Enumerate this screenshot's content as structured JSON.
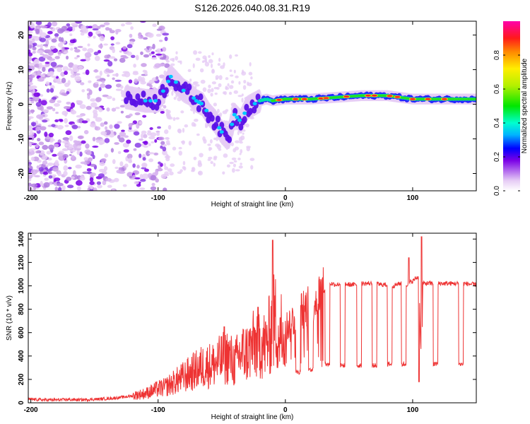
{
  "title": "S126.2026.040.08.31.R19",
  "chart_data": [
    {
      "type": "heatmap",
      "xlabel": "Height of straight line (km)",
      "ylabel": "Frequency (Hz)",
      "xlim": [
        -202,
        150
      ],
      "ylim": [
        -25,
        24
      ],
      "x_ticks": [
        -200,
        -100,
        0,
        100
      ],
      "x_tick_labels": [
        "-200",
        "-100",
        "0",
        "100"
      ],
      "y_ticks": [
        -20,
        -10,
        0,
        10,
        20
      ],
      "y_tick_labels": [
        "-20",
        "-10",
        "0",
        "10",
        "20"
      ],
      "colorbar": {
        "label": "Normalized spectral amplitude",
        "range": [
          0,
          1
        ],
        "ticks": [
          0.0,
          0.2,
          0.4,
          0.6,
          0.8
        ],
        "tick_labels": [
          "0.0",
          "0.2",
          "0.4",
          "0.6",
          "0.8"
        ]
      },
      "ridge": {
        "x": [
          -125,
          -110,
          -100,
          -90,
          -85,
          -80,
          -75,
          -70,
          -65,
          -60,
          -55,
          -50,
          -45,
          -40,
          -35,
          -30,
          -25,
          -20,
          -15,
          -10,
          0,
          10,
          20,
          40,
          60,
          80,
          100,
          120,
          140,
          150
        ],
        "y": [
          2,
          1,
          1,
          8,
          6,
          4,
          3,
          1,
          0,
          -3,
          -5,
          -8,
          -10,
          -3,
          -5,
          -1,
          0,
          1,
          1.5,
          1,
          1.5,
          1.5,
          1.5,
          2,
          2.5,
          2.5,
          1.5,
          1.5,
          1.5,
          1.5
        ]
      }
    },
    {
      "type": "line",
      "xlabel": "Height of straight line (km)",
      "ylabel": "SNR (10 * v/v)",
      "xlim": [
        -202,
        150
      ],
      "ylim": [
        0,
        1450
      ],
      "x_ticks": [
        -200,
        -100,
        0,
        100
      ],
      "x_tick_labels": [
        "-200",
        "-100",
        "0",
        "100"
      ],
      "y_ticks": [
        0,
        200,
        400,
        600,
        800,
        1000,
        1200,
        1400
      ],
      "y_tick_labels": [
        "0",
        "200",
        "400",
        "600",
        "800",
        "1000",
        "1200",
        "1400"
      ],
      "series": [
        {
          "name": "SNR",
          "color": "#ee3333",
          "x": [
            -202,
            -190,
            -180,
            -170,
            -160,
            -150,
            -140,
            -130,
            -120,
            -110,
            -100,
            -95,
            -90,
            -85,
            -80,
            -75,
            -70,
            -65,
            -60,
            -55,
            -50,
            -45,
            -40,
            -35,
            -30,
            -25,
            -20,
            -15,
            -10,
            -8,
            -5,
            0,
            5,
            10,
            15,
            20,
            25,
            30,
            34,
            36,
            40,
            45,
            50,
            55,
            60,
            65,
            70,
            75,
            80,
            85,
            90,
            95,
            100,
            102,
            105,
            106,
            107,
            108,
            110,
            115,
            120,
            125,
            130,
            140,
            150
          ],
          "values": [
            30,
            25,
            25,
            28,
            25,
            30,
            35,
            45,
            60,
            80,
            120,
            130,
            160,
            190,
            220,
            250,
            280,
            310,
            320,
            330,
            370,
            400,
            330,
            420,
            430,
            490,
            520,
            480,
            680,
            700,
            600,
            640,
            700,
            760,
            800,
            860,
            900,
            950,
            1000,
            1020,
            1010,
            1020,
            1010,
            1010,
            1020,
            1020,
            1020,
            1010,
            1010,
            1000,
            1020,
            1010,
            1040,
            1060,
            1080,
            600,
            300,
            1020,
            1020,
            1020,
            1020,
            1020,
            1020,
            1020,
            1010
          ]
        }
      ],
      "spikes": [
        {
          "x": -10,
          "value": 1390
        },
        {
          "x": -48,
          "value": 650
        },
        {
          "x": 97,
          "value": 1240
        },
        {
          "x": 107,
          "value": 1420
        },
        {
          "x": 105,
          "value": 180
        }
      ],
      "dropouts": [
        {
          "x": 10,
          "value": 260
        },
        {
          "x": 20,
          "value": 280
        },
        {
          "x": 33,
          "value": 330
        },
        {
          "x": 45,
          "value": 320
        },
        {
          "x": 58,
          "value": 320
        },
        {
          "x": 70,
          "value": 320
        },
        {
          "x": 82,
          "value": 330
        },
        {
          "x": 93,
          "value": 330
        },
        {
          "x": 118,
          "value": 330
        },
        {
          "x": 138,
          "value": 330
        }
      ]
    }
  ]
}
